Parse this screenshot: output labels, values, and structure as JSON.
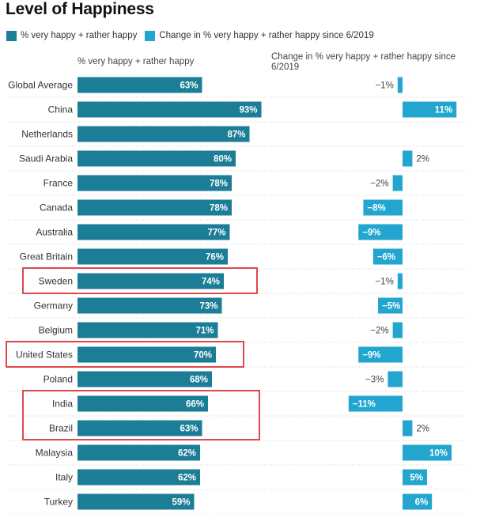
{
  "title": "Level of Happiness",
  "legend": [
    {
      "label": "% very happy + rather happy",
      "color": "#1c7d96"
    },
    {
      "label": "Change in % very happy + rather happy since 6/2019",
      "color": "#22a6cf"
    }
  ],
  "columns": {
    "level_header": "% very happy + rather happy",
    "change_header": "Change in % very happy + rather happy since 6/2019"
  },
  "chart_data": {
    "type": "bar",
    "title": "Level of Happiness",
    "categories": [
      "Global Average",
      "China",
      "Netherlands",
      "Saudi Arabia",
      "France",
      "Canada",
      "Australia",
      "Great Britain",
      "Sweden",
      "Germany",
      "Belgium",
      "United States",
      "Poland",
      "India",
      "Brazil",
      "Malaysia",
      "Italy",
      "Turkey"
    ],
    "series": [
      {
        "name": "% very happy + rather happy",
        "color": "#1c7d96",
        "values": [
          63,
          93,
          87,
          80,
          78,
          78,
          77,
          76,
          74,
          73,
          71,
          70,
          68,
          66,
          63,
          62,
          62,
          59
        ],
        "labels": [
          "63%",
          "93%",
          "87%",
          "80%",
          "78%",
          "78%",
          "77%",
          "76%",
          "74%",
          "73%",
          "71%",
          "70%",
          "68%",
          "66%",
          "63%",
          "62%",
          "62%",
          "59%"
        ]
      },
      {
        "name": "Change in % very happy + rather happy since 6/2019",
        "color": "#22a6cf",
        "values": [
          -1,
          11,
          null,
          2,
          -2,
          -8,
          -9,
          -6,
          -1,
          -5,
          -2,
          -9,
          -3,
          -11,
          2,
          10,
          5,
          6
        ],
        "labels": [
          "−1%",
          "11%",
          "",
          "2%",
          "−2%",
          "−8%",
          "−9%",
          "−6%",
          "−1%",
          "−5%",
          "−2%",
          "−9%",
          "−3%",
          "−11%",
          "2%",
          "10%",
          "5%",
          "6%"
        ]
      }
    ],
    "highlighted": [
      "Sweden",
      "United States",
      "India",
      "Brazil"
    ],
    "highlight_color": "#e0484a",
    "grid": false,
    "legend_position": "top-left"
  }
}
